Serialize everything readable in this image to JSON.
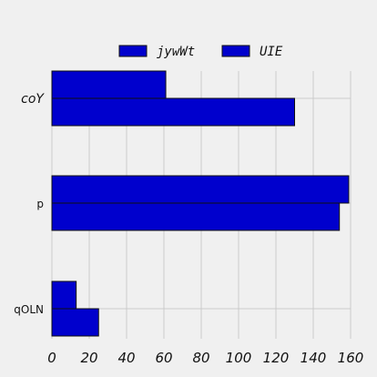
{
  "chart_data": {
    "type": "bar",
    "orientation": "horizontal",
    "title": "",
    "xlabel": "",
    "ylabel": "",
    "categories": [
      "coY",
      "p",
      "qOLN"
    ],
    "category_label_italic": [
      true,
      false,
      false
    ],
    "series": [
      {
        "name": "jywWt",
        "values": [
          61,
          159,
          13
        ],
        "color": "#0000cd"
      },
      {
        "name": "UIE",
        "values": [
          130,
          154,
          25
        ],
        "color": "#0000cd"
      }
    ],
    "xlim": [
      0,
      160
    ],
    "xticks": [
      0,
      20,
      40,
      60,
      80,
      100,
      120,
      140,
      160
    ],
    "grid": true,
    "legend_position": "top-center",
    "background": "#f0f0f0",
    "grid_color": "#cbcbcb",
    "edge_color": "#111111"
  }
}
